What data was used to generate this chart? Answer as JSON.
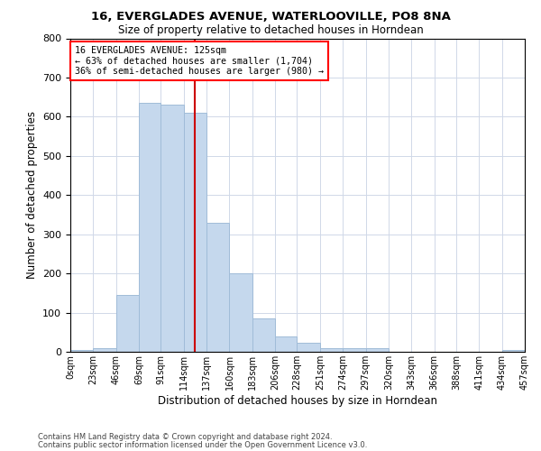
{
  "title1": "16, EVERGLADES AVENUE, WATERLOOVILLE, PO8 8NA",
  "title2": "Size of property relative to detached houses in Horndean",
  "xlabel": "Distribution of detached houses by size in Horndean",
  "ylabel": "Number of detached properties",
  "footnote1": "Contains HM Land Registry data © Crown copyright and database right 2024.",
  "footnote2": "Contains public sector information licensed under the Open Government Licence v3.0.",
  "annotation_line1": "16 EVERGLADES AVENUE: 125sqm",
  "annotation_line2": "← 63% of detached houses are smaller (1,704)",
  "annotation_line3": "36% of semi-detached houses are larger (980) →",
  "bar_color": "#c5d8ed",
  "bar_edgecolor": "#a0bcd8",
  "vline_x": 125,
  "vline_color": "#cc0000",
  "bin_edges": [
    0,
    23,
    46,
    69,
    91,
    114,
    137,
    160,
    183,
    206,
    228,
    251,
    274,
    297,
    320,
    343,
    366,
    388,
    411,
    434,
    457
  ],
  "bin_heights": [
    5,
    10,
    145,
    635,
    630,
    610,
    330,
    200,
    85,
    40,
    22,
    10,
    10,
    10,
    0,
    0,
    0,
    0,
    0,
    5
  ],
  "xlim": [
    0,
    457
  ],
  "ylim": [
    0,
    800
  ],
  "yticks": [
    0,
    100,
    200,
    300,
    400,
    500,
    600,
    700,
    800
  ],
  "xtick_labels": [
    "0sqm",
    "23sqm",
    "46sqm",
    "69sqm",
    "91sqm",
    "114sqm",
    "137sqm",
    "160sqm",
    "183sqm",
    "206sqm",
    "228sqm",
    "251sqm",
    "274sqm",
    "297sqm",
    "320sqm",
    "343sqm",
    "366sqm",
    "388sqm",
    "411sqm",
    "434sqm",
    "457sqm"
  ],
  "xtick_positions": [
    0,
    23,
    46,
    69,
    91,
    114,
    137,
    160,
    183,
    206,
    228,
    251,
    274,
    297,
    320,
    343,
    366,
    388,
    411,
    434,
    457
  ],
  "background_color": "#ffffff",
  "grid_color": "#d0d8e8"
}
